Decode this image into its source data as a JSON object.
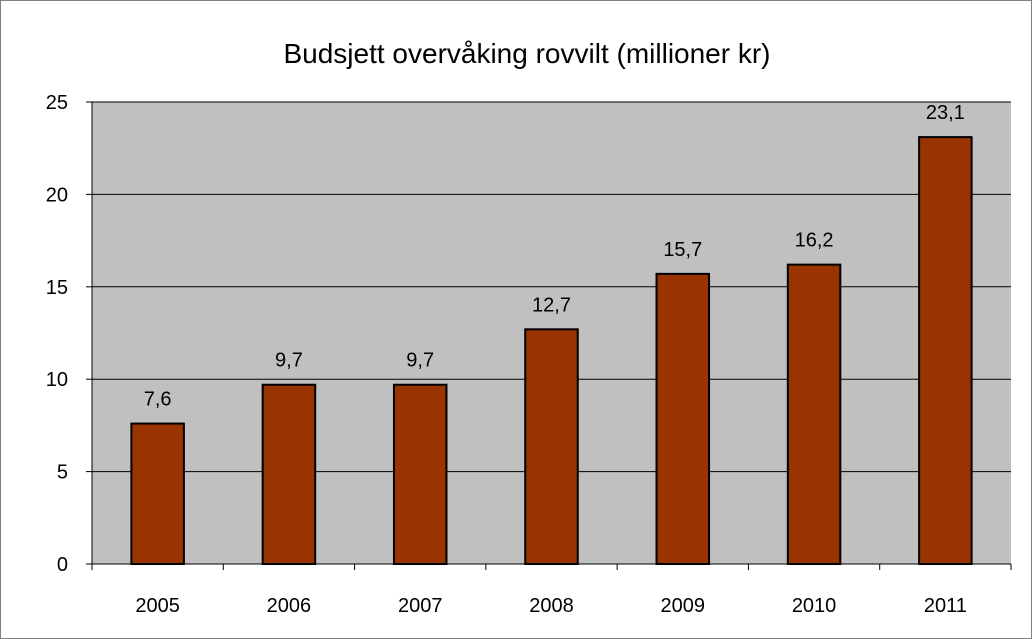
{
  "chart_data": {
    "type": "bar",
    "title": "Budsjett overvåking rovvilt (millioner kr)",
    "xlabel": "",
    "ylabel": "",
    "categories": [
      "2005",
      "2006",
      "2007",
      "2008",
      "2009",
      "2010",
      "2011"
    ],
    "values": [
      7.6,
      9.7,
      9.7,
      12.7,
      15.7,
      16.2,
      23.1
    ],
    "value_labels": [
      "7,6",
      "9,7",
      "9,7",
      "12,7",
      "15,7",
      "16,2",
      "23,1"
    ],
    "ylim": [
      0,
      25
    ],
    "yticks": [
      0,
      5,
      10,
      15,
      20,
      25
    ],
    "grid": true,
    "legend": "none",
    "colors": {
      "bar_fill": "#993300",
      "bar_stroke": "#000000",
      "plot_background": "#c0c0c0",
      "gridline": "#000000"
    }
  }
}
